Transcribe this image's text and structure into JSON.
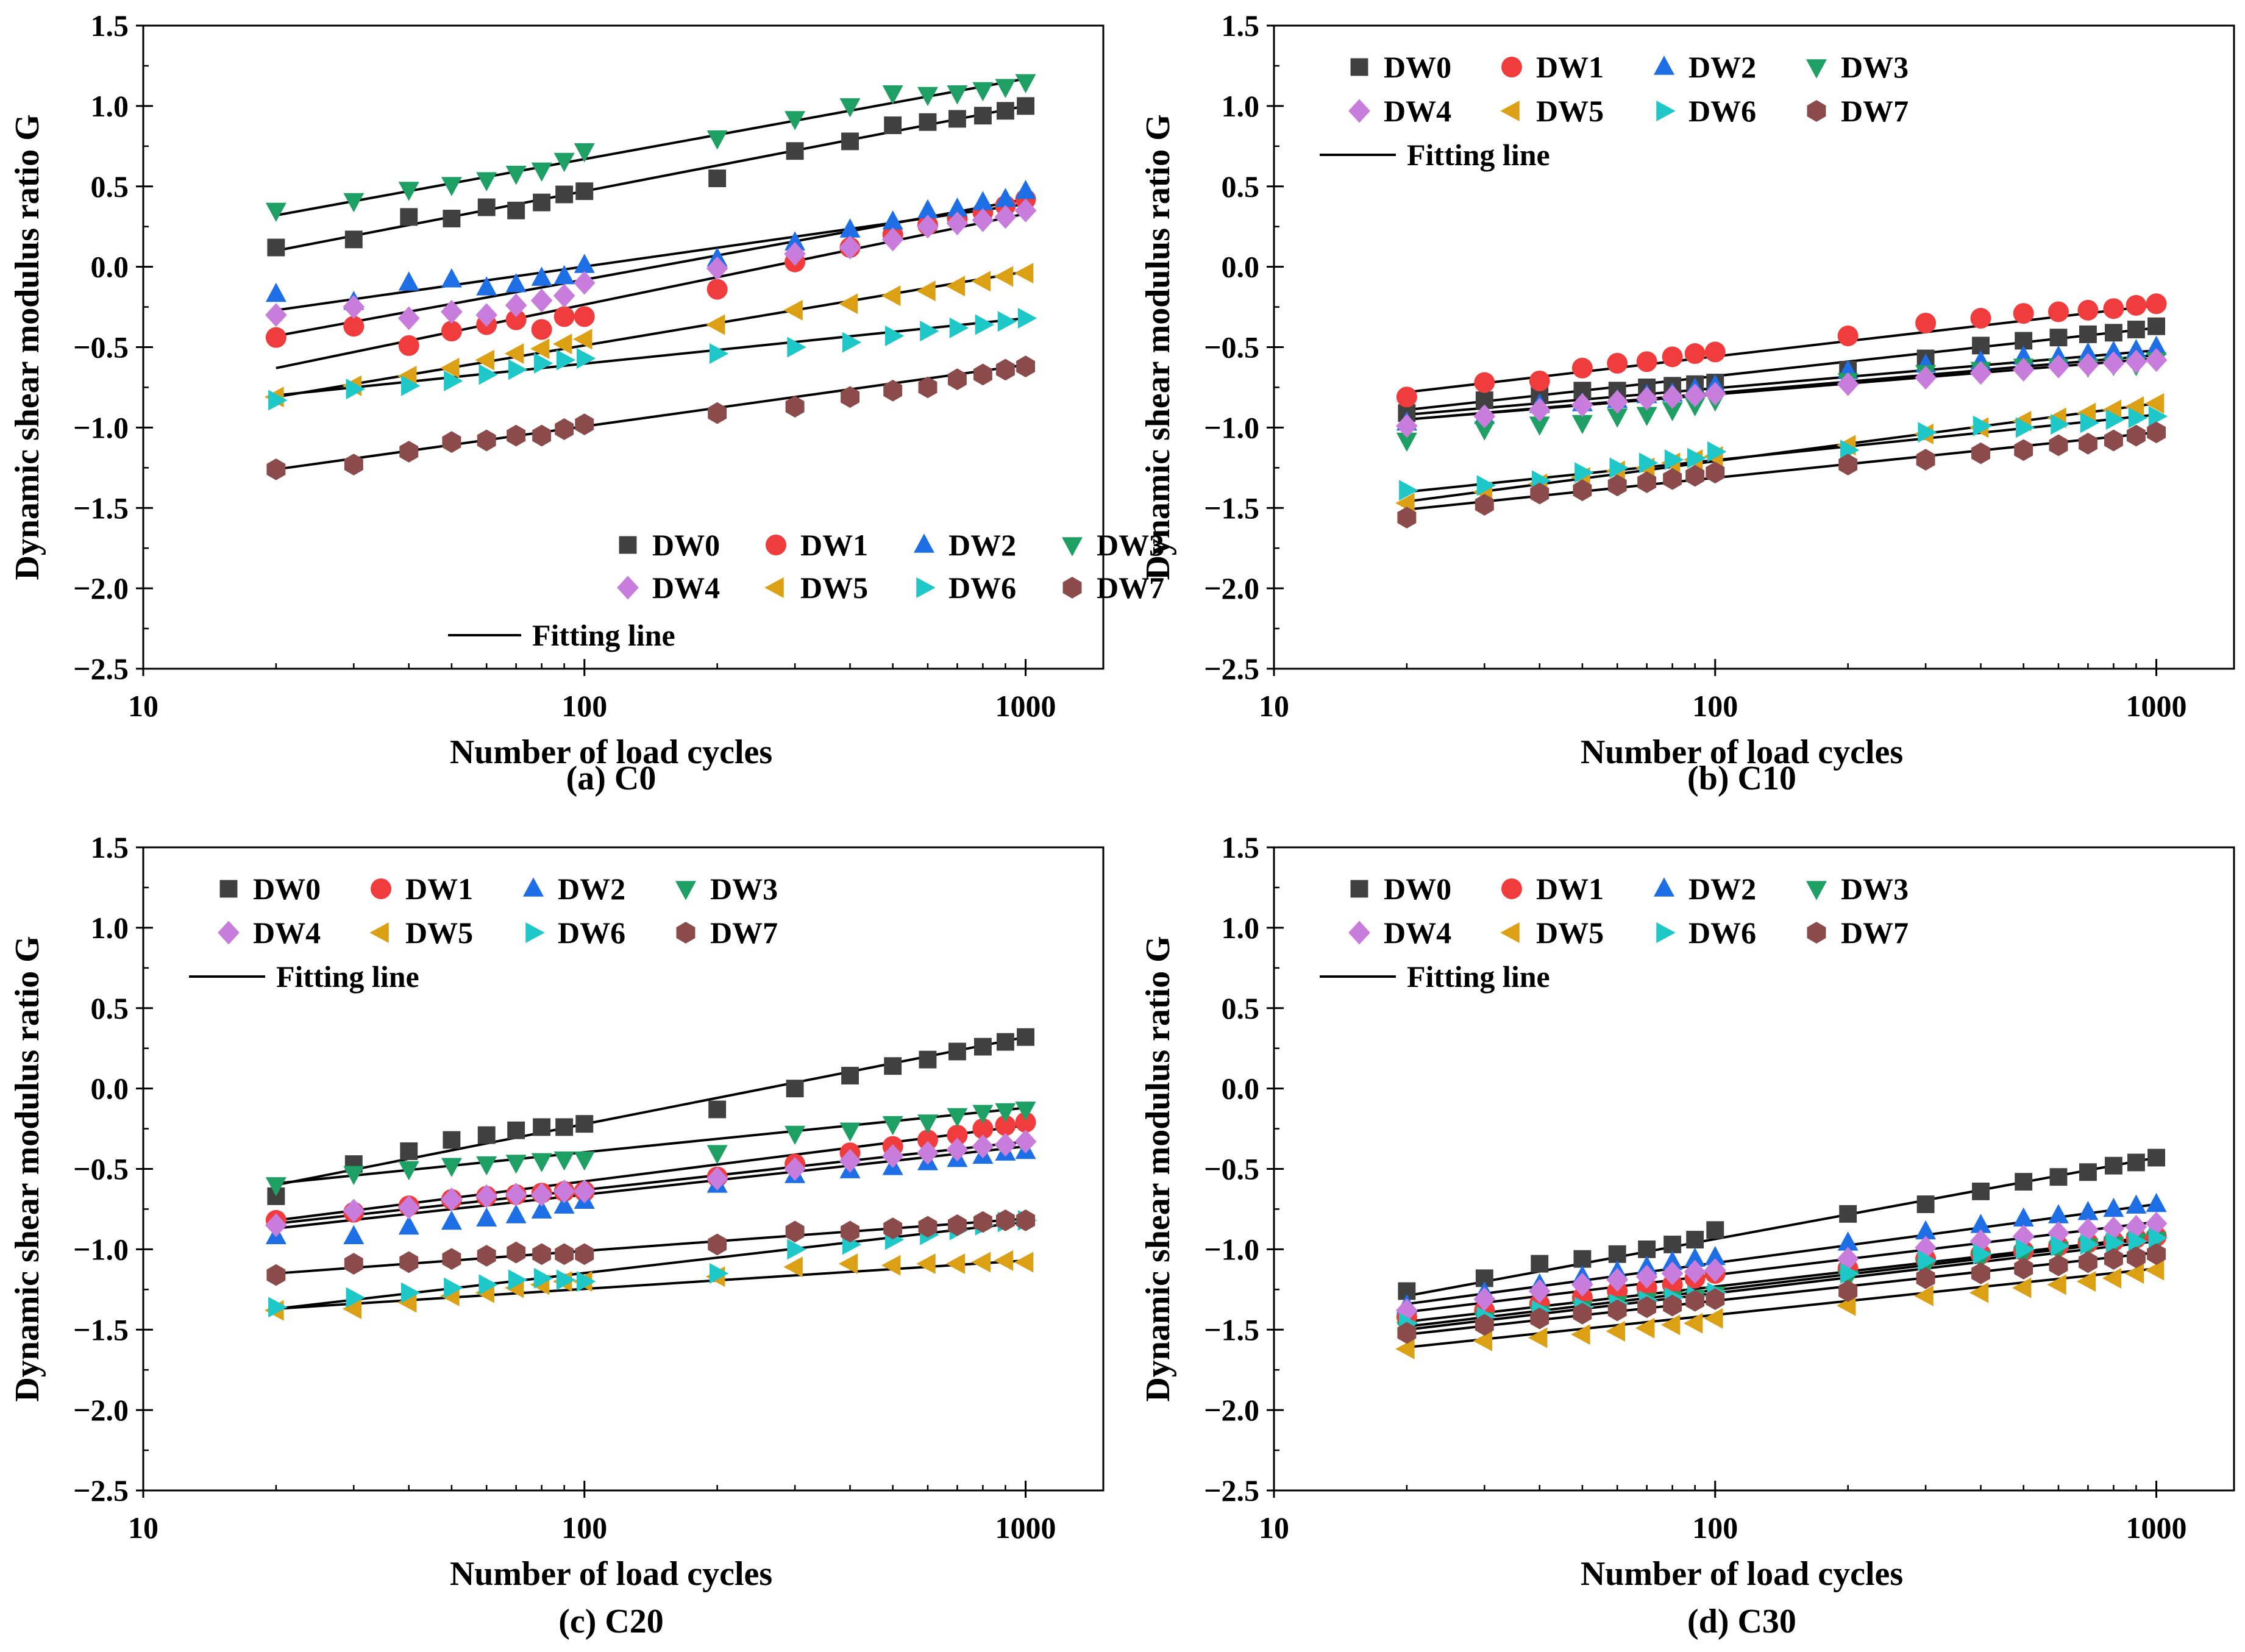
{
  "figure": {
    "legend_fit_label": "Fitting line"
  },
  "series_styles": [
    {
      "name": "DW0",
      "marker": "square-marker",
      "color": "#404040"
    },
    {
      "name": "DW1",
      "marker": "circle-marker",
      "color": "#F03C3C"
    },
    {
      "name": "DW2",
      "marker": "triangle-up-marker",
      "color": "#1E6EE6"
    },
    {
      "name": "DW3",
      "marker": "triangle-down-marker",
      "color": "#1EA064"
    },
    {
      "name": "DW4",
      "marker": "diamond-marker",
      "color": "#C87DDC"
    },
    {
      "name": "DW5",
      "marker": "triangle-left-marker",
      "color": "#DCA014"
    },
    {
      "name": "DW6",
      "marker": "triangle-right-marker",
      "color": "#1EC8C8"
    },
    {
      "name": "DW7",
      "marker": "hexagon-marker",
      "color": "#8C4B4B"
    }
  ],
  "chart_data": [
    {
      "type": "scatter",
      "title": "(a) C0",
      "xlabel": "Number of load cycles",
      "ylabel": "Dynamic shear modulus ratio G",
      "xscale": "log",
      "xlim": [
        10,
        1500
      ],
      "ylim": [
        -2.5,
        1.5
      ],
      "xticks": [
        "10",
        "100",
        "1000"
      ],
      "yticks": [
        "-2.5",
        "-2.0",
        "-1.5",
        "-1.0",
        "-0.5",
        "0.0",
        "0.5",
        "1.0",
        "1.5"
      ],
      "legend_position": "bottom-right",
      "x": [
        20,
        30,
        40,
        50,
        60,
        70,
        80,
        90,
        100,
        200,
        300,
        400,
        500,
        600,
        700,
        800,
        900,
        1000
      ],
      "series": [
        {
          "name": "DW0",
          "values": [
            0.12,
            0.17,
            0.31,
            0.3,
            0.37,
            0.35,
            0.4,
            0.45,
            0.47,
            0.55,
            0.72,
            0.78,
            0.88,
            0.9,
            0.92,
            0.94,
            0.97,
            1.0
          ],
          "fit": [
            0.1,
            1.0
          ]
        },
        {
          "name": "DW1",
          "values": [
            -0.44,
            -0.37,
            -0.49,
            -0.4,
            -0.36,
            -0.33,
            -0.39,
            -0.31,
            -0.31,
            -0.14,
            0.03,
            0.12,
            0.2,
            0.26,
            0.3,
            0.34,
            0.38,
            0.42
          ],
          "fit": [
            -0.43,
            0.42
          ]
        },
        {
          "name": "DW2",
          "values": [
            -0.17,
            -0.22,
            -0.1,
            -0.08,
            -0.13,
            -0.11,
            -0.07,
            -0.06,
            0.01,
            0.05,
            0.15,
            0.23,
            0.28,
            0.35,
            0.36,
            0.4,
            0.42,
            0.47
          ],
          "fit": [
            -0.27,
            0.39
          ]
        },
        {
          "name": "DW3",
          "values": [
            0.35,
            0.41,
            0.48,
            0.51,
            0.54,
            0.58,
            0.6,
            0.66,
            0.72,
            0.8,
            0.92,
            1.0,
            1.08,
            1.07,
            1.08,
            1.1,
            1.12,
            1.15
          ],
          "fit": [
            0.32,
            1.17
          ]
        },
        {
          "name": "DW4",
          "values": [
            -0.3,
            -0.25,
            -0.32,
            -0.28,
            -0.3,
            -0.24,
            -0.21,
            -0.18,
            -0.1,
            -0.01,
            0.08,
            0.12,
            0.17,
            0.25,
            0.27,
            0.29,
            0.31,
            0.35
          ],
          "fit": [
            -0.63,
            0.33
          ]
        },
        {
          "name": "DW5",
          "values": [
            -0.81,
            -0.74,
            -0.68,
            -0.63,
            -0.58,
            -0.54,
            -0.51,
            -0.48,
            -0.45,
            -0.36,
            -0.27,
            -0.23,
            -0.18,
            -0.15,
            -0.12,
            -0.09,
            -0.06,
            -0.04
          ],
          "fit": [
            -0.81,
            -0.03
          ]
        },
        {
          "name": "DW6",
          "values": [
            -0.83,
            -0.76,
            -0.74,
            -0.71,
            -0.67,
            -0.64,
            -0.6,
            -0.58,
            -0.57,
            -0.54,
            -0.5,
            -0.47,
            -0.43,
            -0.4,
            -0.38,
            -0.36,
            -0.34,
            -0.32
          ],
          "fit": [
            -0.8,
            -0.32
          ]
        },
        {
          "name": "DW7",
          "values": [
            -1.26,
            -1.23,
            -1.15,
            -1.09,
            -1.08,
            -1.05,
            -1.05,
            -1.01,
            -0.98,
            -0.91,
            -0.87,
            -0.81,
            -0.77,
            -0.75,
            -0.7,
            -0.67,
            -0.64,
            -0.62
          ],
          "fit": [
            -1.26,
            -0.61
          ]
        }
      ]
    },
    {
      "type": "scatter",
      "title": "(b) C10",
      "xlabel": "Number of load cycles",
      "ylabel": "Dynamic shear modulus ratio G",
      "xscale": "log",
      "xlim": [
        10,
        1500
      ],
      "ylim": [
        -2.5,
        1.5
      ],
      "xticks": [
        "10",
        "100",
        "1000"
      ],
      "yticks": [
        "-2.5",
        "-2.0",
        "-1.5",
        "-1.0",
        "-0.5",
        "0.0",
        "0.5",
        "1.0",
        "1.5"
      ],
      "legend_position": "top-left",
      "x": [
        20,
        30,
        40,
        50,
        60,
        70,
        80,
        90,
        100,
        200,
        300,
        400,
        500,
        600,
        700,
        800,
        900,
        1000
      ],
      "series": [
        {
          "name": "DW0",
          "values": [
            -0.91,
            -0.83,
            -0.8,
            -0.77,
            -0.77,
            -0.75,
            -0.74,
            -0.73,
            -0.72,
            -0.64,
            -0.57,
            -0.49,
            -0.46,
            -0.44,
            -0.42,
            -0.41,
            -0.39,
            -0.37
          ],
          "fit": [
            -0.89,
            -0.38
          ]
        },
        {
          "name": "DW1",
          "values": [
            -0.81,
            -0.72,
            -0.71,
            -0.63,
            -0.6,
            -0.59,
            -0.56,
            -0.54,
            -0.53,
            -0.43,
            -0.35,
            -0.32,
            -0.29,
            -0.28,
            -0.27,
            -0.26,
            -0.24,
            -0.23
          ],
          "fit": [
            -0.78,
            -0.24
          ]
        },
        {
          "name": "DW2",
          "values": [
            -0.97,
            -0.93,
            -0.86,
            -0.85,
            -0.83,
            -0.8,
            -0.79,
            -0.76,
            -0.74,
            -0.65,
            -0.61,
            -0.59,
            -0.56,
            -0.56,
            -0.54,
            -0.53,
            -0.52,
            -0.5
          ],
          "fit": [
            -0.92,
            -0.52
          ]
        },
        {
          "name": "DW3",
          "values": [
            -1.08,
            -1.01,
            -0.98,
            -0.97,
            -0.93,
            -0.92,
            -0.89,
            -0.86,
            -0.83,
            -0.71,
            -0.66,
            -0.64,
            -0.62,
            -0.62,
            -0.62,
            -0.61,
            -0.61,
            -0.58
          ],
          "fit": [
            -0.95,
            -0.55
          ]
        },
        {
          "name": "DW4",
          "values": [
            -0.99,
            -0.93,
            -0.89,
            -0.86,
            -0.84,
            -0.82,
            -0.81,
            -0.8,
            -0.79,
            -0.73,
            -0.69,
            -0.66,
            -0.64,
            -0.62,
            -0.61,
            -0.6,
            -0.59,
            -0.58
          ],
          "fit": [
            -0.95,
            -0.57
          ]
        },
        {
          "name": "DW5",
          "values": [
            -1.47,
            -1.4,
            -1.35,
            -1.31,
            -1.27,
            -1.25,
            -1.22,
            -1.2,
            -1.18,
            -1.11,
            -1.04,
            -1.0,
            -0.96,
            -0.94,
            -0.91,
            -0.89,
            -0.87,
            -0.85
          ],
          "fit": [
            -1.46,
            -0.85
          ]
        },
        {
          "name": "DW6",
          "values": [
            -1.39,
            -1.36,
            -1.33,
            -1.28,
            -1.25,
            -1.22,
            -1.2,
            -1.19,
            -1.15,
            -1.14,
            -1.03,
            -0.99,
            -1.0,
            -0.98,
            -0.97,
            -0.95,
            -0.94,
            -0.93
          ],
          "fit": [
            -1.4,
            -0.92
          ]
        },
        {
          "name": "DW7",
          "values": [
            -1.56,
            -1.48,
            -1.41,
            -1.39,
            -1.36,
            -1.34,
            -1.32,
            -1.3,
            -1.28,
            -1.23,
            -1.2,
            -1.16,
            -1.14,
            -1.11,
            -1.1,
            -1.08,
            -1.05,
            -1.03
          ],
          "fit": [
            -1.51,
            -1.03
          ]
        }
      ]
    },
    {
      "type": "scatter",
      "title": "(c) C20",
      "xlabel": "Number of load cycles",
      "ylabel": "Dynamic shear modulus ratio G",
      "xscale": "log",
      "xlim": [
        10,
        1500
      ],
      "ylim": [
        -2.5,
        1.5
      ],
      "xticks": [
        "10",
        "100",
        "1000"
      ],
      "yticks": [
        "-2.5",
        "-2.0",
        "-1.5",
        "-1.0",
        "-0.5",
        "0.0",
        "0.5",
        "1.0",
        "1.5"
      ],
      "legend_position": "top-left",
      "x": [
        20,
        30,
        40,
        50,
        60,
        70,
        80,
        90,
        100,
        200,
        300,
        400,
        500,
        600,
        700,
        800,
        900,
        1000
      ],
      "series": [
        {
          "name": "DW0",
          "values": [
            -0.67,
            -0.47,
            -0.39,
            -0.32,
            -0.29,
            -0.26,
            -0.24,
            -0.24,
            -0.22,
            -0.13,
            0.0,
            0.08,
            0.14,
            0.18,
            0.23,
            0.26,
            0.29,
            0.32
          ],
          "fit": [
            -0.6,
            0.32
          ]
        },
        {
          "name": "DW1",
          "values": [
            -0.82,
            -0.77,
            -0.73,
            -0.69,
            -0.67,
            -0.66,
            -0.65,
            -0.64,
            -0.64,
            -0.55,
            -0.47,
            -0.4,
            -0.36,
            -0.32,
            -0.29,
            -0.25,
            -0.23,
            -0.21
          ],
          "fit": [
            -0.82,
            -0.23
          ]
        },
        {
          "name": "DW2",
          "values": [
            -0.92,
            -0.92,
            -0.86,
            -0.83,
            -0.81,
            -0.79,
            -0.76,
            -0.73,
            -0.7,
            -0.6,
            -0.54,
            -0.51,
            -0.49,
            -0.46,
            -0.44,
            -0.42,
            -0.4,
            -0.39
          ],
          "fit": [
            -0.87,
            -0.36
          ]
        },
        {
          "name": "DW3",
          "values": [
            -0.6,
            -0.53,
            -0.5,
            -0.48,
            -0.47,
            -0.46,
            -0.45,
            -0.44,
            -0.44,
            -0.4,
            -0.28,
            -0.26,
            -0.22,
            -0.21,
            -0.17,
            -0.15,
            -0.14,
            -0.13
          ],
          "fit": [
            -0.59,
            -0.12
          ]
        },
        {
          "name": "DW4",
          "values": [
            -0.85,
            -0.76,
            -0.74,
            -0.69,
            -0.67,
            -0.66,
            -0.66,
            -0.64,
            -0.64,
            -0.56,
            -0.5,
            -0.45,
            -0.42,
            -0.4,
            -0.38,
            -0.36,
            -0.35,
            -0.33
          ],
          "fit": [
            -0.84,
            -0.33
          ]
        },
        {
          "name": "DW5",
          "values": [
            -1.38,
            -1.37,
            -1.33,
            -1.29,
            -1.27,
            -1.24,
            -1.22,
            -1.2,
            -1.2,
            -1.17,
            -1.11,
            -1.09,
            -1.1,
            -1.09,
            -1.09,
            -1.08,
            -1.07,
            -1.08
          ],
          "fit": [
            -1.37,
            -1.07
          ]
        },
        {
          "name": "DW6",
          "values": [
            -1.36,
            -1.3,
            -1.27,
            -1.24,
            -1.22,
            -1.19,
            -1.18,
            -1.19,
            -1.2,
            -1.15,
            -1.0,
            -0.97,
            -0.94,
            -0.91,
            -0.88,
            -0.85,
            -0.83,
            -0.82
          ],
          "fit": [
            -1.37,
            -0.83
          ]
        },
        {
          "name": "DW7",
          "values": [
            -1.16,
            -1.09,
            -1.08,
            -1.06,
            -1.04,
            -1.02,
            -1.03,
            -1.03,
            -1.03,
            -0.97,
            -0.89,
            -0.89,
            -0.87,
            -0.86,
            -0.85,
            -0.83,
            -0.82,
            -0.82
          ],
          "fit": [
            -1.15,
            -0.81
          ]
        }
      ]
    },
    {
      "type": "scatter",
      "title": "(d) C30",
      "xlabel": "Number of load cycles",
      "ylabel": "Dynamic shear modulus ratio G",
      "xscale": "log",
      "xlim": [
        10,
        1500
      ],
      "ylim": [
        -2.5,
        1.5
      ],
      "xticks": [
        "10",
        "100",
        "1000"
      ],
      "yticks": [
        "-2.5",
        "-2.0",
        "-1.5",
        "-1.0",
        "-0.5",
        "0.0",
        "0.5",
        "1.0",
        "1.5"
      ],
      "legend_position": "top-left",
      "x": [
        20,
        30,
        40,
        50,
        60,
        70,
        80,
        90,
        100,
        200,
        300,
        400,
        500,
        600,
        700,
        800,
        900,
        1000
      ],
      "series": [
        {
          "name": "DW0",
          "values": [
            -1.26,
            -1.18,
            -1.09,
            -1.06,
            -1.03,
            -1.0,
            -0.97,
            -0.94,
            -0.88,
            -0.78,
            -0.72,
            -0.64,
            -0.58,
            -0.55,
            -0.52,
            -0.48,
            -0.46,
            -0.43
          ],
          "fit": [
            -1.29,
            -0.43
          ]
        },
        {
          "name": "DW1",
          "values": [
            -1.42,
            -1.38,
            -1.34,
            -1.3,
            -1.26,
            -1.24,
            -1.22,
            -1.18,
            -1.15,
            -1.12,
            -1.06,
            -1.03,
            -1.01,
            -0.98,
            -0.96,
            -0.95,
            -0.93,
            -0.92
          ],
          "fit": [
            -1.45,
            -0.92
          ]
        },
        {
          "name": "DW2",
          "values": [
            -1.35,
            -1.27,
            -1.22,
            -1.17,
            -1.14,
            -1.11,
            -1.08,
            -1.06,
            -1.05,
            -0.96,
            -0.89,
            -0.85,
            -0.81,
            -0.79,
            -0.77,
            -0.75,
            -0.73,
            -0.72
          ],
          "fit": [
            -1.34,
            -0.72
          ]
        },
        {
          "name": "DW3",
          "values": [
            -1.5,
            -1.44,
            -1.4,
            -1.37,
            -1.34,
            -1.32,
            -1.31,
            -1.3,
            -1.28,
            -1.18,
            -1.11,
            -1.06,
            -1.03,
            -1.0,
            -0.98,
            -0.97,
            -0.95,
            -0.94
          ],
          "fit": [
            -1.48,
            -0.93
          ]
        },
        {
          "name": "DW4",
          "values": [
            -1.38,
            -1.31,
            -1.26,
            -1.22,
            -1.19,
            -1.17,
            -1.15,
            -1.14,
            -1.13,
            -1.06,
            -0.99,
            -0.95,
            -0.92,
            -0.9,
            -0.88,
            -0.87,
            -0.86,
            -0.84
          ],
          "fit": [
            -1.39,
            -0.83
          ]
        },
        {
          "name": "DW5",
          "values": [
            -1.62,
            -1.57,
            -1.55,
            -1.53,
            -1.51,
            -1.49,
            -1.47,
            -1.46,
            -1.43,
            -1.35,
            -1.29,
            -1.27,
            -1.24,
            -1.22,
            -1.2,
            -1.18,
            -1.15,
            -1.13
          ],
          "fit": [
            -1.61,
            -1.12
          ]
        },
        {
          "name": "DW6",
          "values": [
            -1.46,
            -1.42,
            -1.38,
            -1.36,
            -1.34,
            -1.32,
            -1.3,
            -1.29,
            -1.27,
            -1.15,
            -1.07,
            -1.03,
            -1.0,
            -0.98,
            -0.97,
            -0.96,
            -0.95,
            -0.93
          ],
          "fit": [
            -1.5,
            -0.95
          ]
        },
        {
          "name": "DW7",
          "values": [
            -1.52,
            -1.47,
            -1.43,
            -1.4,
            -1.38,
            -1.36,
            -1.35,
            -1.32,
            -1.31,
            -1.26,
            -1.18,
            -1.15,
            -1.12,
            -1.1,
            -1.08,
            -1.06,
            -1.05,
            -1.03
          ],
          "fit": [
            -1.53,
            -1.02
          ]
        }
      ]
    }
  ]
}
